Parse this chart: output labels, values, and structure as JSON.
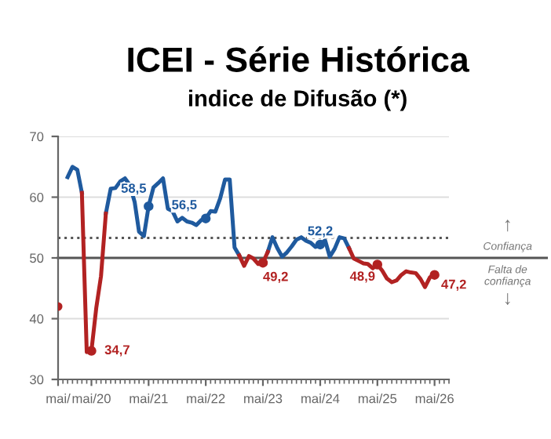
{
  "chart_data": {
    "type": "line",
    "title": "ICEI - Série Histórica",
    "subtitle": "indice de Difusão (*)",
    "x": [
      "2019-10",
      "2019-11",
      "2019-12",
      "2020-01",
      "2020-02",
      "2020-03",
      "2020-04",
      "2020-05",
      "2020-06",
      "2020-07",
      "2020-08",
      "2020-09",
      "2020-10",
      "2020-11",
      "2020-12",
      "2021-01",
      "2021-02",
      "2021-03",
      "2021-04",
      "2021-05",
      "2021-06",
      "2021-07",
      "2021-08",
      "2021-09",
      "2021-10",
      "2021-11",
      "2021-12",
      "2022-01",
      "2022-02",
      "2022-03",
      "2022-04",
      "2022-05",
      "2022-06",
      "2022-07",
      "2022-08",
      "2022-09",
      "2022-10",
      "2022-11",
      "2022-12",
      "2023-01",
      "2023-02",
      "2023-03",
      "2023-04",
      "2023-05",
      "2023-06",
      "2023-07",
      "2023-08",
      "2023-09",
      "2023-10",
      "2023-11",
      "2023-12",
      "2024-01",
      "2024-02",
      "2024-03",
      "2024-04",
      "2024-05",
      "2024-06",
      "2024-07",
      "2024-08",
      "2024-09",
      "2024-10",
      "2024-11",
      "2024-12",
      "2025-01",
      "2025-02",
      "2025-03",
      "2025-04",
      "2025-05",
      "2025-06",
      "2025-07",
      "2025-08",
      "2025-09",
      "2025-10",
      "2025-11",
      "2025-12",
      "2026-01",
      "2026-02",
      "2026-03",
      "2026-04",
      "2026-05"
    ],
    "series": [
      {
        "color": "#1f5a9e",
        "values": [
          null,
          null,
          63.3,
          65.0,
          64.5,
          60.7,
          null,
          null,
          null,
          null,
          57.3,
          61.4,
          61.5,
          62.6,
          63.1,
          62.0,
          59.2,
          54.3,
          53.6,
          58.5,
          61.6,
          62.3,
          63.1,
          58.1,
          57.7,
          56.0,
          56.6,
          56.0,
          55.8,
          55.4,
          56.2,
          56.5,
          57.7,
          57.6,
          59.8,
          62.9,
          62.9,
          51.7,
          50.4,
          null,
          null,
          null,
          null,
          null,
          51.0,
          53.4,
          51.6,
          50.2,
          50.9,
          51.9,
          53.0,
          53.4,
          52.8,
          52.5,
          51.8,
          52.2,
          52.9,
          50.2,
          51.5,
          53.4,
          53.2,
          51.6,
          null,
          null,
          null,
          null,
          null,
          null,
          null,
          null,
          null,
          null,
          null,
          null,
          null,
          null,
          null,
          null,
          null,
          null
        ]
      },
      {
        "color": "#b22222",
        "values": [
          42,
          null,
          null,
          null,
          null,
          60.7,
          34.5,
          34.7,
          41.8,
          47.0,
          57.3,
          null,
          null,
          null,
          null,
          null,
          null,
          null,
          null,
          null,
          null,
          null,
          null,
          null,
          null,
          null,
          null,
          null,
          null,
          null,
          null,
          null,
          null,
          null,
          null,
          null,
          null,
          null,
          50.4,
          48.7,
          50.3,
          49.9,
          49.0,
          49.2,
          51.0,
          null,
          null,
          null,
          null,
          null,
          null,
          null,
          null,
          null,
          null,
          null,
          null,
          null,
          null,
          null,
          null,
          51.6,
          49.9,
          49.5,
          49.1,
          49.0,
          48.3,
          48.9,
          47.9,
          46.6,
          46.0,
          46.3,
          47.2,
          47.8,
          47.6,
          47.5,
          46.5,
          45.2,
          46.8,
          47.2
        ]
      }
    ],
    "xlim": [
      "2019-10",
      "2026-08"
    ],
    "xticks": [
      {
        "value": "2019-10",
        "label": "mai/"
      },
      {
        "value": "2020-05",
        "label": "mai/20"
      },
      {
        "value": "2021-05",
        "label": "mai/21"
      },
      {
        "value": "2022-05",
        "label": "mai/22"
      },
      {
        "value": "2023-05",
        "label": "mai/23"
      },
      {
        "value": "2024-05",
        "label": "mai/24"
      },
      {
        "value": "2025-05",
        "label": "mai/25"
      },
      {
        "value": "2026-05",
        "label": "mai/26"
      }
    ],
    "ylim": [
      30,
      70
    ],
    "yticks": [
      30,
      40,
      50,
      60,
      70
    ],
    "grid": "y",
    "line_style": "solid",
    "marker": "none",
    "ref_lines": [
      {
        "axis": "y",
        "value": 50,
        "color": "#555555",
        "line_style": "solid"
      },
      {
        "axis": "y",
        "value": 53.3,
        "color": "#555555",
        "line_style": "dotted"
      }
    ],
    "annotations": [
      {
        "text": "34,7",
        "x": "2020-05",
        "y": 34.7
      },
      {
        "text": "58,5",
        "x": "2021-05",
        "y": 58.5
      },
      {
        "text": "56,5",
        "x": "2022-05",
        "y": 56.5
      },
      {
        "text": "49,2",
        "x": "2023-05",
        "y": 49.2
      },
      {
        "text": "52,2",
        "x": "2024-05",
        "y": 52.2
      },
      {
        "text": "48,9",
        "x": "2025-05",
        "y": 48.9
      },
      {
        "text": "47,2",
        "x": "2026-05",
        "y": 47.2
      },
      "↑",
      "Confiança",
      "Falta de\nconfiança",
      "↓"
    ]
  }
}
